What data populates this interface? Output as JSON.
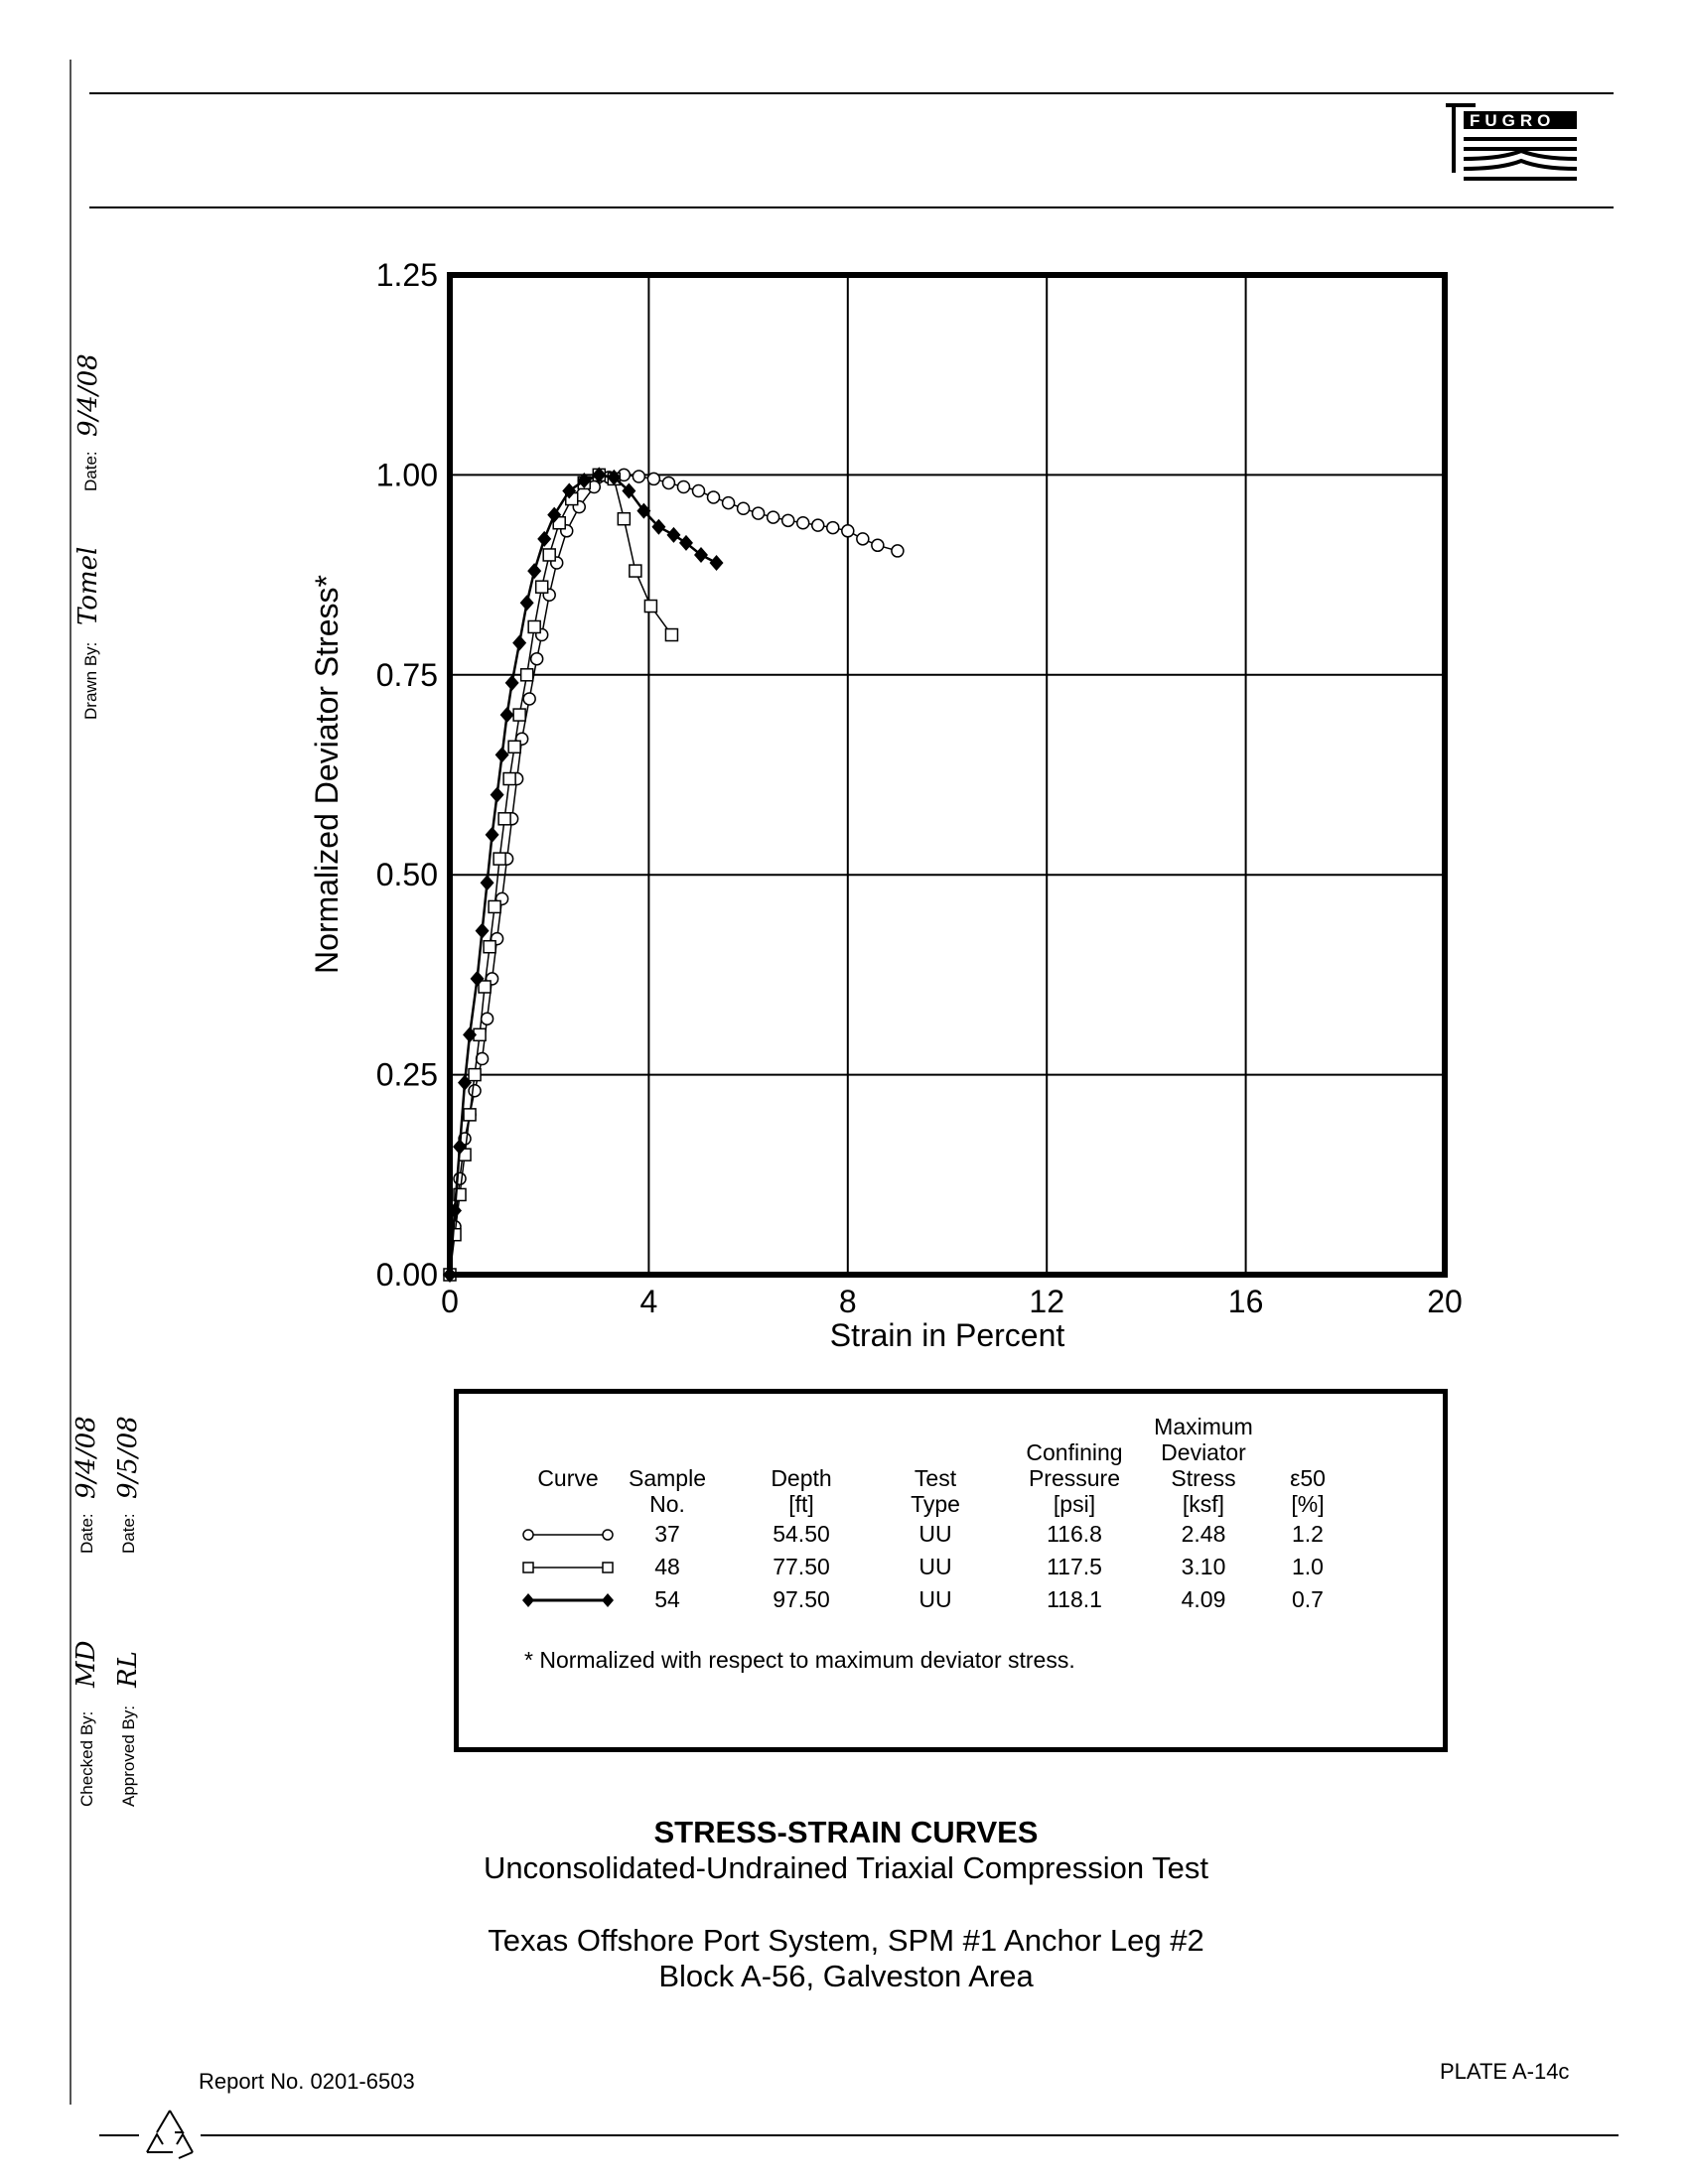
{
  "logo": {
    "text": "FUGRO"
  },
  "signoff": {
    "drawn_by_label": "Drawn By:",
    "drawn_by_signature": "Tomel",
    "drawn_date_label": "Date:",
    "drawn_date": "9/4/08",
    "checked_by_label": "Checked By:",
    "checked_by_signature": "MD",
    "checked_date_label": "Date:",
    "checked_date": "9/4/08",
    "approved_by_label": "Approved By:",
    "approved_by_signature": "RL",
    "approved_date_label": "Date:",
    "approved_date": "9/5/08"
  },
  "chart_data": {
    "type": "line",
    "title": "",
    "xlabel": "Strain in Percent",
    "ylabel": "Normalized Deviator Stress*",
    "xlim": [
      0,
      20
    ],
    "ylim": [
      0,
      1.25
    ],
    "xticks": [
      "0",
      "4",
      "8",
      "12",
      "16",
      "20"
    ],
    "yticks": [
      "0.00",
      "0.25",
      "0.50",
      "0.75",
      "1.00",
      "1.25"
    ],
    "grid": true,
    "series": [
      {
        "marker": "circle",
        "sample": "37",
        "points": [
          [
            0,
            0
          ],
          [
            0.1,
            0.06
          ],
          [
            0.2,
            0.12
          ],
          [
            0.3,
            0.17
          ],
          [
            0.4,
            0.2
          ],
          [
            0.5,
            0.23
          ],
          [
            0.65,
            0.27
          ],
          [
            0.75,
            0.32
          ],
          [
            0.85,
            0.37
          ],
          [
            0.95,
            0.42
          ],
          [
            1.05,
            0.47
          ],
          [
            1.15,
            0.52
          ],
          [
            1.25,
            0.57
          ],
          [
            1.35,
            0.62
          ],
          [
            1.45,
            0.67
          ],
          [
            1.6,
            0.72
          ],
          [
            1.75,
            0.77
          ],
          [
            1.85,
            0.8
          ],
          [
            2.0,
            0.85
          ],
          [
            2.15,
            0.89
          ],
          [
            2.35,
            0.93
          ],
          [
            2.6,
            0.96
          ],
          [
            2.9,
            0.985
          ],
          [
            3.2,
            0.997
          ],
          [
            3.5,
            1.0
          ],
          [
            3.8,
            0.998
          ],
          [
            4.1,
            0.995
          ],
          [
            4.4,
            0.99
          ],
          [
            4.7,
            0.985
          ],
          [
            5.0,
            0.98
          ],
          [
            5.3,
            0.972
          ],
          [
            5.6,
            0.965
          ],
          [
            5.9,
            0.958
          ],
          [
            6.2,
            0.952
          ],
          [
            6.5,
            0.947
          ],
          [
            6.8,
            0.943
          ],
          [
            7.1,
            0.94
          ],
          [
            7.4,
            0.937
          ],
          [
            7.7,
            0.934
          ],
          [
            8.0,
            0.93
          ],
          [
            8.3,
            0.92
          ],
          [
            8.6,
            0.912
          ],
          [
            9.0,
            0.905
          ]
        ]
      },
      {
        "marker": "square",
        "sample": "48",
        "points": [
          [
            0,
            0
          ],
          [
            0.1,
            0.05
          ],
          [
            0.2,
            0.1
          ],
          [
            0.3,
            0.15
          ],
          [
            0.4,
            0.2
          ],
          [
            0.5,
            0.25
          ],
          [
            0.6,
            0.3
          ],
          [
            0.7,
            0.36
          ],
          [
            0.8,
            0.41
          ],
          [
            0.9,
            0.46
          ],
          [
            1.0,
            0.52
          ],
          [
            1.1,
            0.57
          ],
          [
            1.2,
            0.62
          ],
          [
            1.3,
            0.66
          ],
          [
            1.4,
            0.7
          ],
          [
            1.55,
            0.75
          ],
          [
            1.7,
            0.81
          ],
          [
            1.85,
            0.86
          ],
          [
            2.0,
            0.9
          ],
          [
            2.2,
            0.94
          ],
          [
            2.45,
            0.97
          ],
          [
            2.7,
            0.99
          ],
          [
            3.0,
            1.0
          ],
          [
            3.3,
            0.995
          ],
          [
            3.5,
            0.945
          ],
          [
            3.73,
            0.88
          ],
          [
            4.04,
            0.836
          ],
          [
            4.46,
            0.8
          ]
        ]
      },
      {
        "marker": "diamond",
        "sample": "54",
        "points": [
          [
            0,
            0
          ],
          [
            0.1,
            0.08
          ],
          [
            0.2,
            0.16
          ],
          [
            0.3,
            0.24
          ],
          [
            0.4,
            0.3
          ],
          [
            0.55,
            0.37
          ],
          [
            0.65,
            0.43
          ],
          [
            0.75,
            0.49
          ],
          [
            0.85,
            0.55
          ],
          [
            0.95,
            0.6
          ],
          [
            1.05,
            0.65
          ],
          [
            1.15,
            0.7
          ],
          [
            1.25,
            0.74
          ],
          [
            1.4,
            0.79
          ],
          [
            1.55,
            0.84
          ],
          [
            1.7,
            0.88
          ],
          [
            1.9,
            0.92
          ],
          [
            2.1,
            0.95
          ],
          [
            2.4,
            0.98
          ],
          [
            2.7,
            0.993
          ],
          [
            3.0,
            1.0
          ],
          [
            3.3,
            0.997
          ],
          [
            3.6,
            0.98
          ],
          [
            3.9,
            0.955
          ],
          [
            4.2,
            0.935
          ],
          [
            4.5,
            0.925
          ],
          [
            4.75,
            0.915
          ],
          [
            5.05,
            0.9
          ],
          [
            5.36,
            0.89
          ]
        ]
      }
    ]
  },
  "legend_table": {
    "headers": {
      "curve": "Curve",
      "sample": [
        "Sample",
        "No."
      ],
      "depth": [
        "Depth",
        "[ft]"
      ],
      "test": [
        "Test",
        "Type"
      ],
      "confining": [
        "Confining",
        "Pressure",
        "[psi]"
      ],
      "maxdev": [
        "Maximum",
        "Deviator",
        "Stress",
        "[ksf]"
      ],
      "e50": [
        "ε50",
        "[%]"
      ]
    },
    "rows": [
      {
        "marker": "circle",
        "sample": "37",
        "depth": "54.50",
        "test": "UU",
        "confining": "116.8",
        "maxdev": "2.48",
        "e50": "1.2"
      },
      {
        "marker": "square",
        "sample": "48",
        "depth": "77.50",
        "test": "UU",
        "confining": "117.5",
        "maxdev": "3.10",
        "e50": "1.0"
      },
      {
        "marker": "diamond",
        "sample": "54",
        "depth": "97.50",
        "test": "UU",
        "confining": "118.1",
        "maxdev": "4.09",
        "e50": "0.7"
      }
    ],
    "footnote": "* Normalized with respect to maximum deviator stress."
  },
  "titles": {
    "main": "STRESS-STRAIN CURVES",
    "sub": "Unconsolidated-Undrained Triaxial Compression Test",
    "project1": "Texas Offshore Port System, SPM #1 Anchor Leg #2",
    "project2": "Block A-56, Galveston Area"
  },
  "footer": {
    "report": "Report No. 0201-6503",
    "plate": "PLATE A-14c"
  }
}
